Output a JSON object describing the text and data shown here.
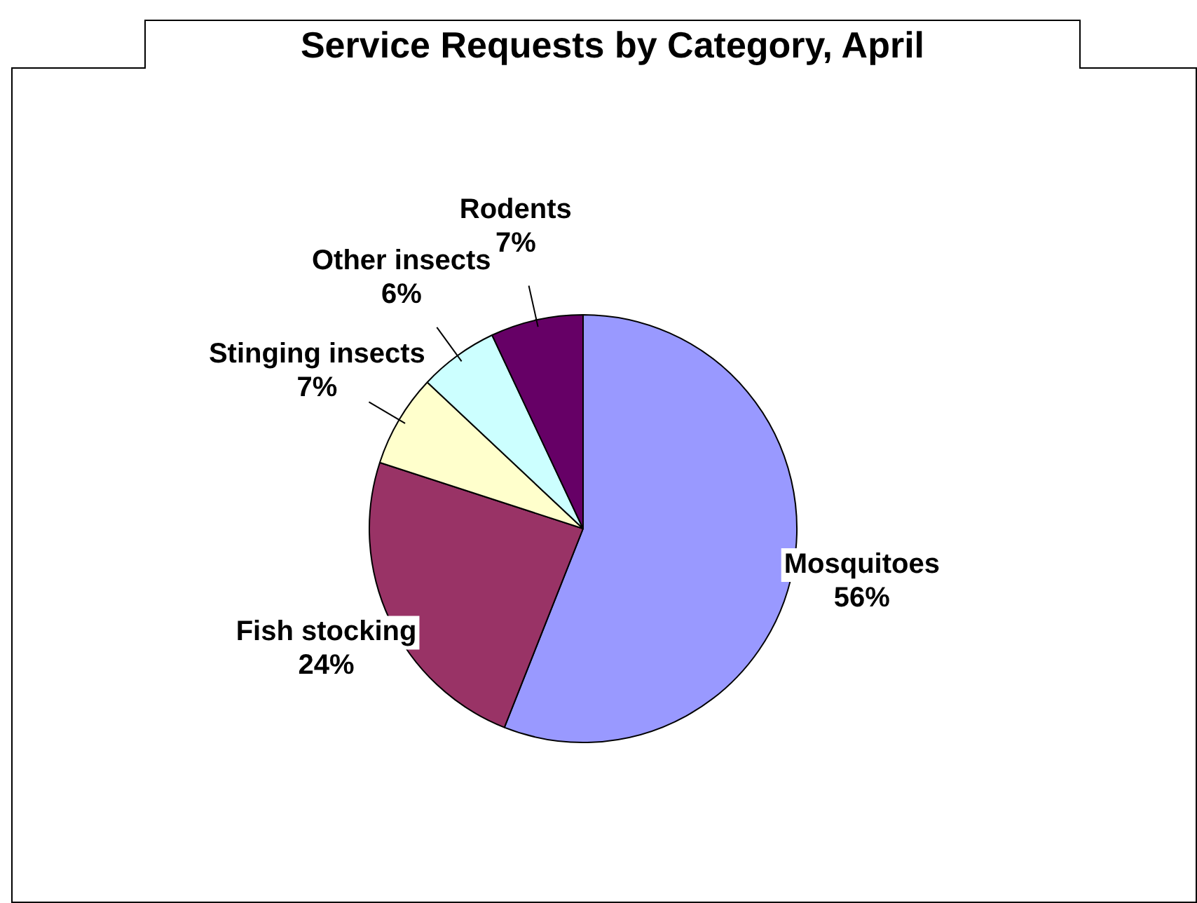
{
  "chart_data": {
    "type": "pie",
    "title": "Service Requests by Category, April",
    "categories": [
      "Mosquitoes",
      "Fish stocking",
      "Stinging insects",
      "Other insects",
      "Rodents"
    ],
    "values": [
      56,
      24,
      7,
      6,
      7
    ],
    "colors": [
      "#9999ff",
      "#993366",
      "#ffffcc",
      "#ccffff",
      "#660066"
    ],
    "value_labels": [
      "56%",
      "24%",
      "7%",
      "6%",
      "7%"
    ],
    "legend": false
  }
}
